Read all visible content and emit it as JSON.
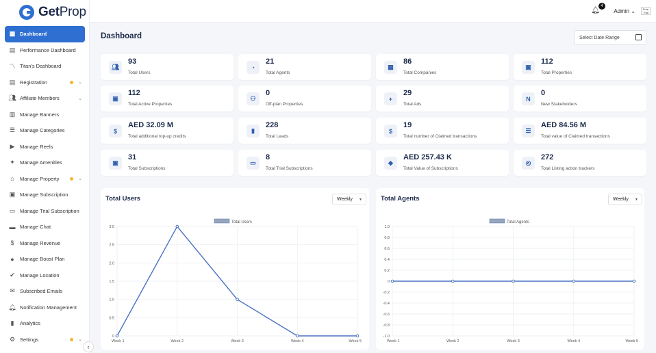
{
  "app": {
    "brand_bold": "Get",
    "brand_light": "Prop"
  },
  "sidebar": {
    "items": [
      {
        "label": "Dashboard",
        "icon": "grid-icon",
        "active": true,
        "dot": false,
        "chevron": false
      },
      {
        "label": "Performance Dashboard",
        "icon": "chart-grid-icon",
        "dot": false,
        "chevron": false
      },
      {
        "label": "Titan's Dashboard",
        "icon": "trend-icon",
        "dot": false,
        "chevron": false
      },
      {
        "label": "Registration",
        "icon": "document-icon",
        "dot": true,
        "chevron": true
      },
      {
        "label": "Affiliate Members",
        "icon": "users-icon",
        "dot": false,
        "chevron": true
      },
      {
        "label": "Manage Banners",
        "icon": "banner-icon",
        "dot": false,
        "chevron": false
      },
      {
        "label": "Manage Categories",
        "icon": "list-icon",
        "dot": false,
        "chevron": false
      },
      {
        "label": "Manage Reels",
        "icon": "video-icon",
        "dot": false,
        "chevron": false
      },
      {
        "label": "Manage Amenities",
        "icon": "amenities-icon",
        "dot": false,
        "chevron": false
      },
      {
        "label": "Manage Property",
        "icon": "home-icon",
        "dot": true,
        "chevron": true
      },
      {
        "label": "Manage Subscription",
        "icon": "subscription-icon",
        "dot": false,
        "chevron": false
      },
      {
        "label": "Manage Trial Subscription",
        "icon": "monitor-icon",
        "dot": false,
        "chevron": false
      },
      {
        "label": "Manage Chat",
        "icon": "chat-icon",
        "dot": false,
        "chevron": false
      },
      {
        "label": "Manage Revenue",
        "icon": "dollar-icon",
        "dot": false,
        "chevron": false
      },
      {
        "label": "Manage Boost Plan",
        "icon": "rocket-icon",
        "dot": false,
        "chevron": false
      },
      {
        "label": "Manage Location",
        "icon": "location-icon",
        "dot": false,
        "chevron": false
      },
      {
        "label": "Subscribed Emails",
        "icon": "mail-icon",
        "dot": false,
        "chevron": false
      },
      {
        "label": "Notification Management",
        "icon": "bell-icon",
        "dot": false,
        "chevron": false
      },
      {
        "label": "Analytics",
        "icon": "analytics-icon",
        "dot": false,
        "chevron": false
      },
      {
        "label": "Settings",
        "icon": "gear-icon",
        "dot": true,
        "chevron": true
      }
    ]
  },
  "topbar": {
    "notification_count": "4",
    "user_label": "Admin ⌄",
    "avatar_text": "Free Trial"
  },
  "main": {
    "title": "Dashboard",
    "date_range_placeholder": "Select Date Range",
    "cards": [
      {
        "value": "93",
        "label": "Total Users",
        "icon": "users-icon"
      },
      {
        "value": "21",
        "label": "Total Agents",
        "icon": "agent-icon"
      },
      {
        "value": "86",
        "label": "Total Companies",
        "icon": "building-icon"
      },
      {
        "value": "112",
        "label": "Total Properties",
        "icon": "property-icon"
      },
      {
        "value": "112",
        "label": "Total Active Properties",
        "icon": "property-icon"
      },
      {
        "value": "0",
        "label": "Off-plan Properties",
        "icon": "offplan-icon"
      },
      {
        "value": "29",
        "label": "Total Ads",
        "icon": "ads-icon"
      },
      {
        "value": "0",
        "label": "New Stakeholders",
        "icon": "new-icon"
      },
      {
        "value": "AED 32.09 M",
        "label": "Total additional top-up credits",
        "icon": "credits-icon"
      },
      {
        "value": "228",
        "label": "Total Leads",
        "icon": "bar-chart-icon"
      },
      {
        "value": "19",
        "label": "Total number of Claimed transactions",
        "icon": "dollar-circle-icon"
      },
      {
        "value": "AED 84.56 M",
        "label": "Total value of Claimed transactions",
        "icon": "receipt-icon"
      },
      {
        "value": "31",
        "label": "Total Subscriptions",
        "icon": "subscription-icon"
      },
      {
        "value": "8",
        "label": "Total Trial Subscriptions",
        "icon": "monitor-icon"
      },
      {
        "value": "AED 257.43 K",
        "label": "Total Value of Subscriptions",
        "icon": "tag-icon"
      },
      {
        "value": "272",
        "label": "Total Listing action trackers",
        "icon": "tracker-icon"
      }
    ]
  },
  "chart_data": [
    {
      "type": "line",
      "title": "Total Users",
      "period": "Weekly",
      "categories": [
        "Week 1",
        "Week 2",
        "Week 3",
        "Week 4",
        "Week 5"
      ],
      "series": [
        {
          "name": "Total Users",
          "values": [
            0,
            3,
            1,
            0,
            0
          ]
        }
      ],
      "ylim": [
        0,
        3
      ],
      "yticks": [
        "0",
        "0.5",
        "1.0",
        "1.5",
        "2.0",
        "2.5",
        "3.0"
      ],
      "legend": "top-center",
      "color": "#4a72c4"
    },
    {
      "type": "line",
      "title": "Total Agents",
      "period": "Weekly",
      "categories": [
        "Week 1",
        "Week 2",
        "Week 3",
        "Week 4",
        "Week 5"
      ],
      "series": [
        {
          "name": "Total Agents",
          "values": [
            0,
            0,
            0,
            0,
            0
          ]
        }
      ],
      "ylim": [
        -1,
        1
      ],
      "yticks": [
        "-1.0",
        "-0.8",
        "-0.6",
        "-0.4",
        "-0.2",
        "0",
        "0.2",
        "0.4",
        "0.6",
        "0.8",
        "1.0"
      ],
      "legend": "top-center",
      "color": "#4a72c4"
    }
  ]
}
